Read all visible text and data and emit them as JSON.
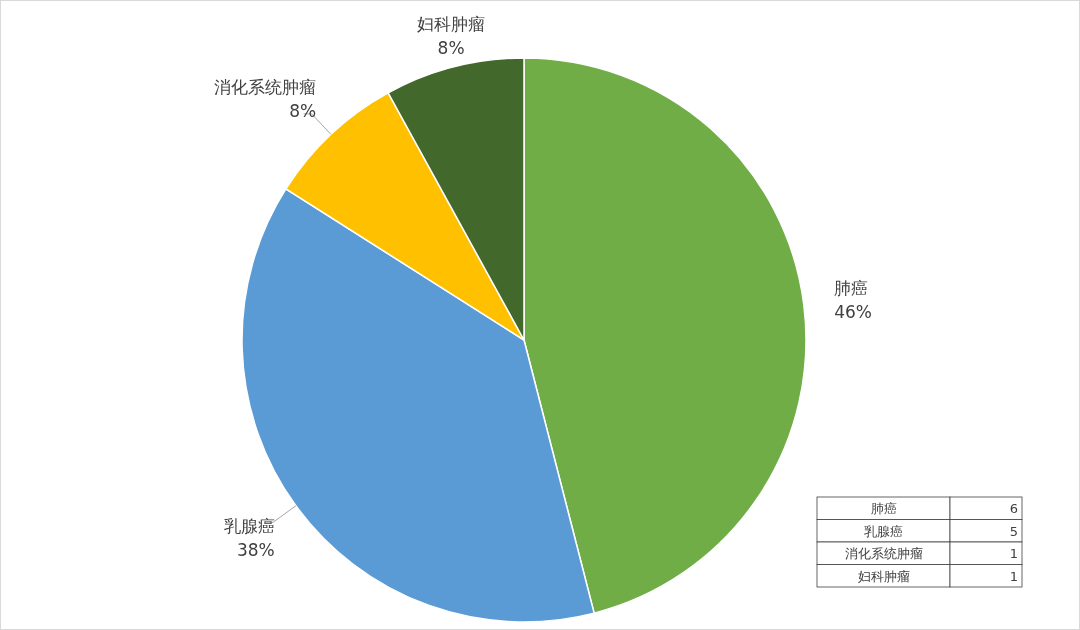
{
  "chart_data": {
    "type": "pie",
    "categories": [
      "肺癌",
      "乳腺癌",
      "消化系统肿瘤",
      "妇科肿瘤"
    ],
    "values": [
      46,
      38,
      8,
      8
    ],
    "colors": [
      "#70ad47",
      "#5b9bd5",
      "#ffc000",
      "#43682b"
    ],
    "value_labels": [
      "46%",
      "38%",
      "8%",
      "8%"
    ],
    "annotations": [
      "6",
      "5",
      "1",
      "1"
    ]
  }
}
